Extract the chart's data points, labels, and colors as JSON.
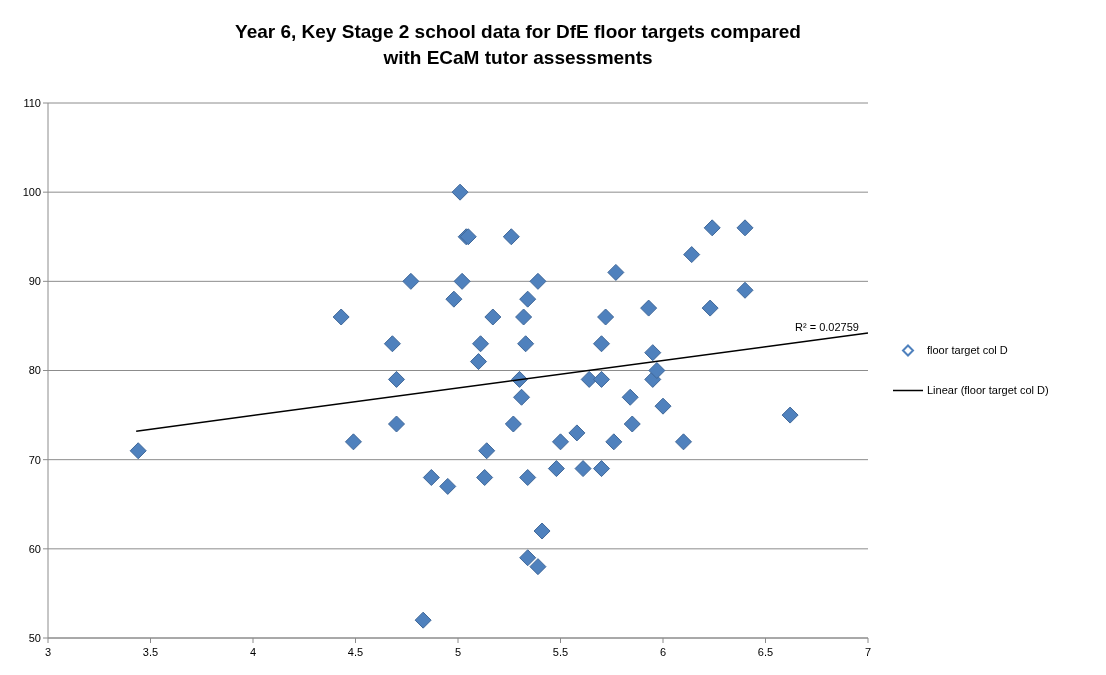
{
  "chart_data": {
    "type": "scatter",
    "title": "Year 6, Key Stage 2 school data for DfE floor targets compared with ECaM tutor assessments",
    "xlim": [
      3,
      7
    ],
    "xticks": [
      3,
      3.5,
      4,
      4.5,
      5,
      5.5,
      6,
      6.5,
      7
    ],
    "ylim": [
      50,
      110
    ],
    "yticks": [
      50,
      60,
      70,
      80,
      90,
      100,
      110
    ],
    "grid": "y",
    "legend": "right",
    "marker": "diamond",
    "annotations": [
      {
        "text": "R² = 0.02759",
        "x": 6.8,
        "y": 84
      }
    ],
    "series": [
      {
        "name": "floor target col D",
        "color": "#4f81bd",
        "x": [
          3.44,
          4.43,
          4.49,
          4.68,
          4.7,
          4.7,
          4.77,
          4.83,
          4.87,
          4.95,
          4.98,
          5.01,
          5.02,
          5.04,
          5.05,
          5.1,
          5.11,
          5.13,
          5.14,
          5.17,
          5.26,
          5.27,
          5.3,
          5.31,
          5.32,
          5.33,
          5.34,
          5.34,
          5.34,
          5.39,
          5.39,
          5.41,
          5.48,
          5.5,
          5.58,
          5.61,
          5.64,
          5.7,
          5.7,
          5.7,
          5.72,
          5.76,
          5.77,
          5.84,
          5.85,
          5.93,
          5.95,
          5.95,
          5.97,
          6.0,
          6.1,
          6.14,
          6.23,
          6.24,
          6.4,
          6.4,
          6.62
        ],
        "values": [
          71,
          86,
          72,
          83,
          79,
          74,
          90,
          52,
          68,
          67,
          88,
          100,
          90,
          95,
          95,
          81,
          83,
          68,
          71,
          86,
          95,
          74,
          79,
          77,
          86,
          83,
          88,
          68,
          59,
          90,
          58,
          62,
          69,
          72,
          73,
          69,
          79,
          79,
          83,
          69,
          86,
          72,
          91,
          77,
          74,
          87,
          82,
          79,
          80,
          76,
          72,
          93,
          87,
          96,
          96,
          89,
          75
        ]
      },
      {
        "name": "Linear (floor target col D)",
        "type": "line",
        "color": "#000000",
        "marker": "none",
        "x": [
          3.43,
          7
        ],
        "values": [
          73.2,
          84.2
        ]
      }
    ]
  }
}
